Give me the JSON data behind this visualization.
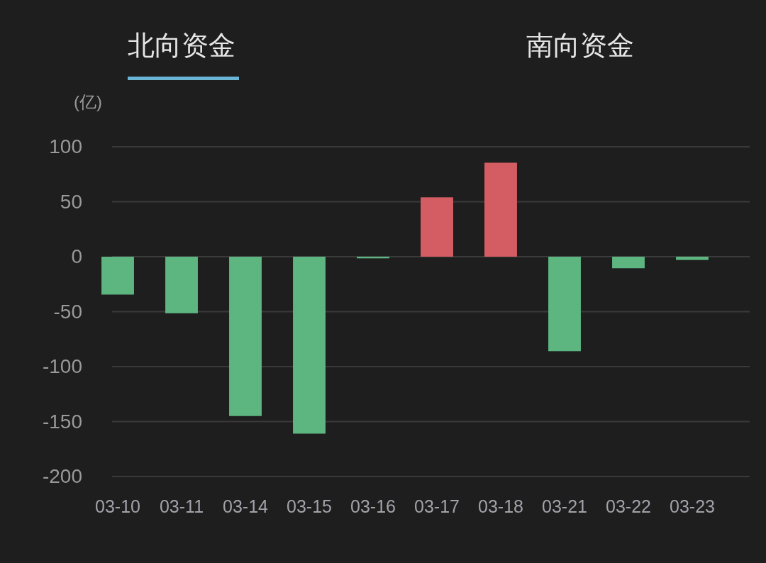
{
  "chart_data": {
    "type": "bar",
    "title": "北向资金",
    "annotations": [
      "南向资金"
    ],
    "ylabel": "(亿)",
    "categories": [
      "03-10",
      "03-11",
      "03-14",
      "03-15",
      "03-16",
      "03-17",
      "03-18",
      "03-21",
      "03-22",
      "03-23"
    ],
    "values": [
      -34.5,
      -51.5,
      -145,
      -161,
      -1.5,
      54,
      85.5,
      -86,
      -10.5,
      -3
    ],
    "colors": [
      "#5db580",
      "#5db580",
      "#5db580",
      "#5db580",
      "#5db580",
      "#d45d63",
      "#d45d63",
      "#5db580",
      "#5db580",
      "#5db580"
    ],
    "ylim": [
      -200,
      100
    ],
    "yticks": [
      -200,
      -150,
      -100,
      -50,
      0,
      50,
      100
    ],
    "grid": "y"
  }
}
